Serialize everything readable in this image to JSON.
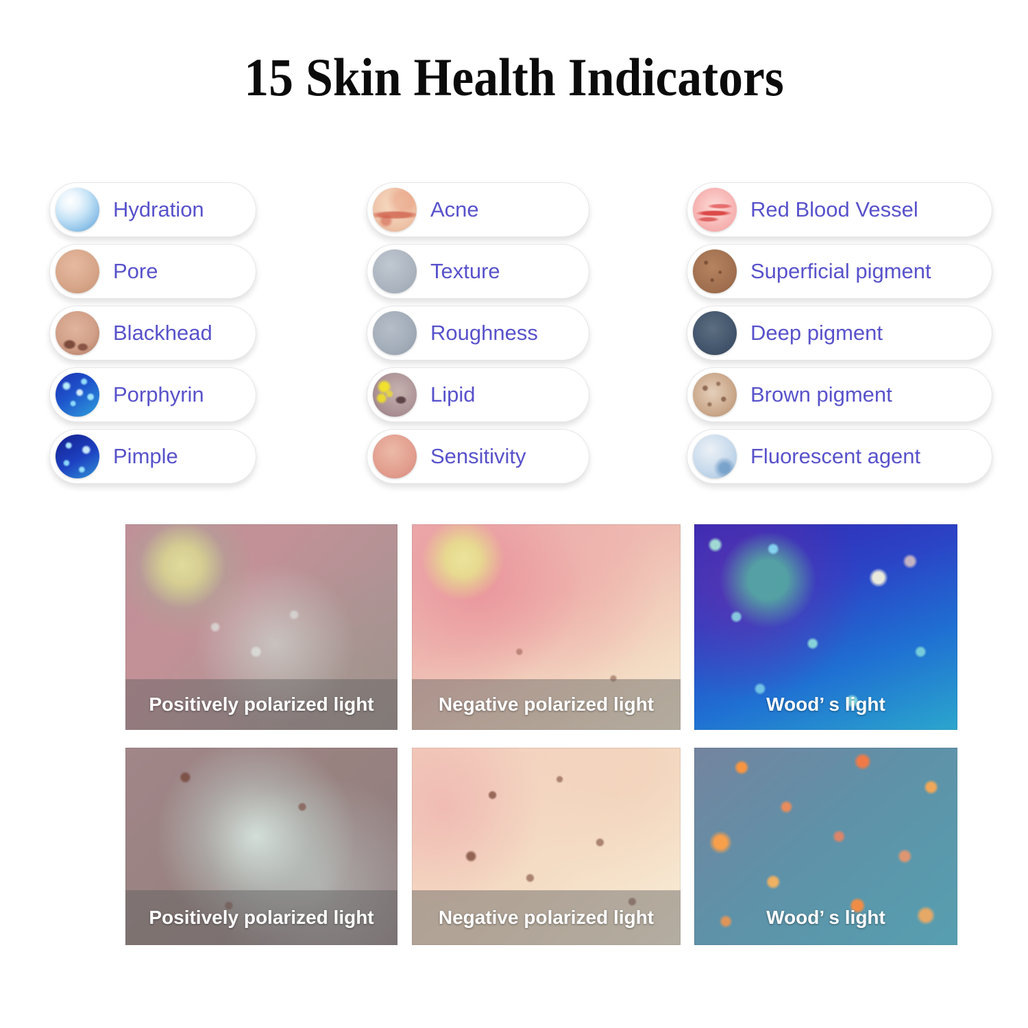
{
  "title": "15 Skin Health Indicators",
  "indicators": {
    "columns": [
      {
        "items": [
          {
            "label": "Hydration",
            "swatch": "hydration-swatch"
          },
          {
            "label": "Pore",
            "swatch": "pore-swatch"
          },
          {
            "label": "Blackhead",
            "swatch": "blackhead-swatch"
          },
          {
            "label": "Porphyrin",
            "swatch": "porphyrin-swatch"
          },
          {
            "label": "Pimple",
            "swatch": "pimple-swatch"
          }
        ]
      },
      {
        "items": [
          {
            "label": "Acne",
            "swatch": "acne-swatch"
          },
          {
            "label": "Texture",
            "swatch": "texture-swatch"
          },
          {
            "label": "Roughness",
            "swatch": "roughness-swatch"
          },
          {
            "label": "Lipid",
            "swatch": "lipid-swatch"
          },
          {
            "label": "Sensitivity",
            "swatch": "sensitivity-swatch"
          }
        ]
      },
      {
        "items": [
          {
            "label": "Red Blood Vessel",
            "swatch": "red-blood-vessel-swatch"
          },
          {
            "label": "Superficial pigment",
            "swatch": "superficial-pigment-swatch"
          },
          {
            "label": "Deep pigment",
            "swatch": "deep-pigment-swatch"
          },
          {
            "label": "Brown pigment",
            "swatch": "brown-pigment-swatch"
          },
          {
            "label": "Fluorescent agent",
            "swatch": "fluorescent-agent-swatch"
          }
        ]
      }
    ]
  },
  "photos": {
    "rows": [
      {
        "cells": [
          {
            "caption": "Positively polarized light"
          },
          {
            "caption": "Negative polarized light"
          },
          {
            "caption": "Wood’ s light"
          }
        ]
      },
      {
        "cells": [
          {
            "caption": "Positively polarized light"
          },
          {
            "caption": "Negative polarized light"
          },
          {
            "caption": "Wood’ s light"
          }
        ]
      }
    ]
  },
  "colors": {
    "label_text": "#5852cb",
    "title_text": "#0b0b0b",
    "caption_text": "#ffffff",
    "pill_border": "#e6e6ea",
    "caption_bar_overlay": "rgba(96,96,96,0.45)"
  }
}
